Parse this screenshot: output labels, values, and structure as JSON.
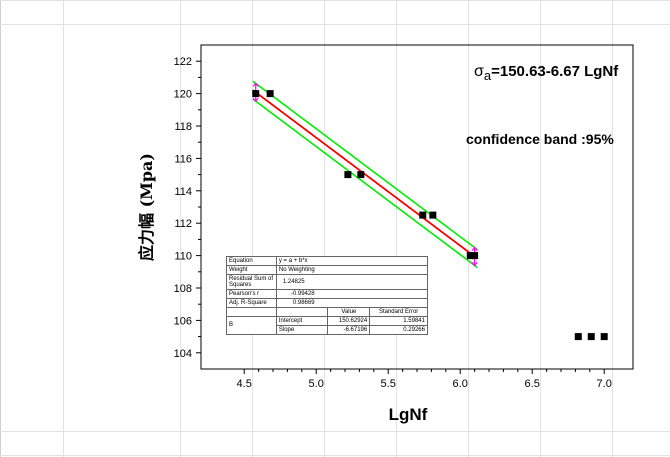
{
  "chart_data": {
    "type": "scatter",
    "xlabel": "LgNf",
    "ylabel": "应力幅 (Mpa)",
    "xlim": [
      4.2,
      7.2
    ],
    "ylim": [
      103,
      123
    ],
    "xticks": [
      "4.5",
      "5.0",
      "5.5",
      "6.0",
      "6.5",
      "7.0"
    ],
    "yticks": [
      "104",
      "106",
      "108",
      "110",
      "112",
      "114",
      "116",
      "118",
      "120",
      "122"
    ],
    "grid": false,
    "series": [
      {
        "kind": "points",
        "marker": "square",
        "color": "#000000",
        "points": [
          [
            4.58,
            120
          ],
          [
            4.68,
            120
          ],
          [
            5.22,
            115
          ],
          [
            5.31,
            115
          ],
          [
            5.74,
            112.5
          ],
          [
            5.81,
            112.5
          ],
          [
            6.07,
            110
          ],
          [
            6.1,
            110
          ]
        ]
      },
      {
        "kind": "points",
        "marker": "square",
        "color": "#000000",
        "points": [
          [
            6.82,
            105
          ],
          [
            6.91,
            105
          ],
          [
            7.0,
            105
          ]
        ]
      }
    ],
    "fit_line": {
      "intercept": 150.63,
      "slope": -6.67,
      "x_range": [
        4.56,
        6.12
      ],
      "color": "#ff0000"
    },
    "confidence_band": {
      "level": "95%",
      "half_width": 0.55,
      "color": "#00ee00"
    },
    "error_bars": {
      "color": "#ff00ff",
      "x": [
        4.58,
        6.1
      ]
    },
    "annotations": {
      "equation_symbol": "σ",
      "equation_sub": "a",
      "equation_rest": "=150.63-6.67 LgNf",
      "confidence": "confidence band :95%"
    },
    "stats_table": {
      "equation_label": "Equation",
      "equation_value": "y = a + b*x",
      "weight_label": "Weight",
      "weight_value": "No Weighting",
      "rss_label": "Residual Sum of Squares",
      "rss_value": "1.24825",
      "pearson_label": "Pearson's r",
      "pearson_value": "-0.99428",
      "adjr2_label": "Adj. R-Square",
      "adjr2_value": "0.98669",
      "value_header": "Value",
      "stderr_header": "Standard Error",
      "param_group": "B",
      "intercept_label": "Intercept",
      "intercept_value": "150.62924",
      "intercept_err": "1.59841",
      "slope_label": "Slope",
      "slope_value": "-6.67196",
      "slope_err": "0.29266"
    }
  }
}
